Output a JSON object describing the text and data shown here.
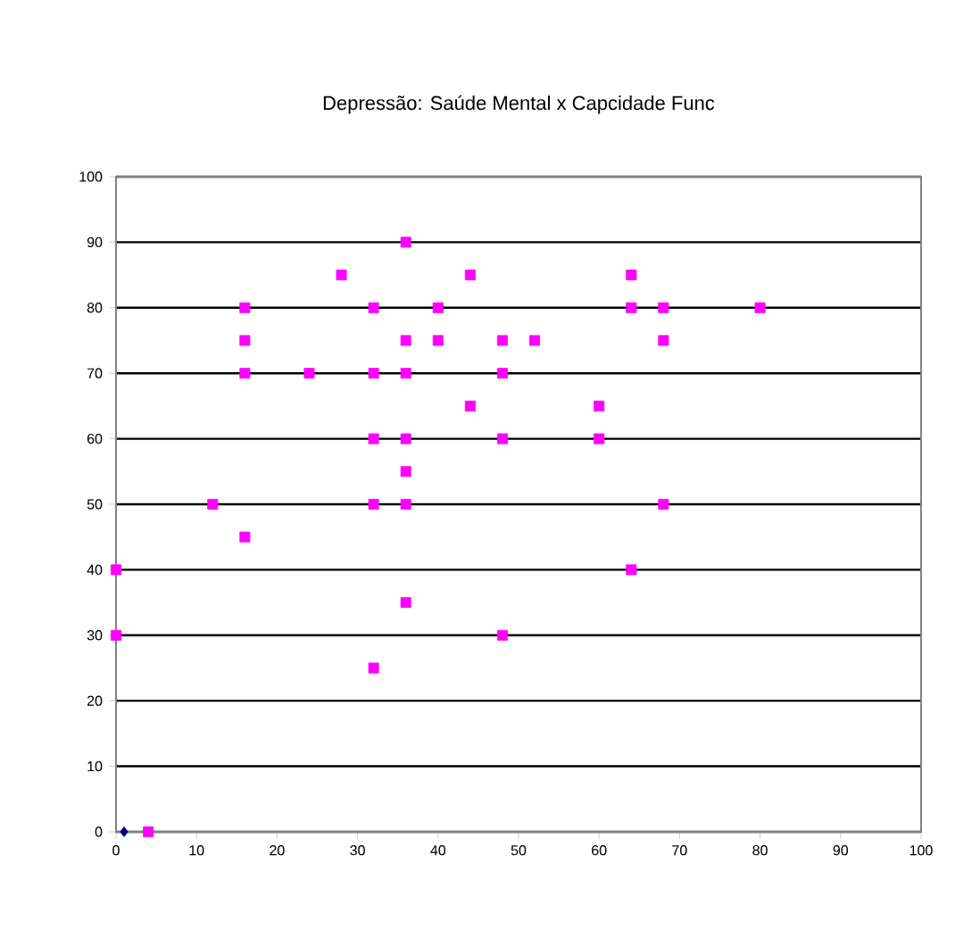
{
  "chart_data": {
    "type": "scatter",
    "title": "Depressão: Saúde Mental x Capcidade Func",
    "series": [
      {
        "color": "#ff00ff",
        "marker": "square",
        "x": [
          0,
          0,
          4,
          12,
          16,
          16,
          16,
          16,
          24,
          28,
          32,
          32,
          32,
          32,
          32,
          36,
          36,
          36,
          36,
          36,
          36,
          36,
          40,
          40,
          44,
          44,
          48,
          48,
          48,
          48,
          52,
          60,
          60,
          64,
          64,
          64,
          68,
          68,
          68,
          80
        ],
        "values": [
          40,
          30,
          0,
          50,
          80,
          75,
          70,
          45,
          70,
          85,
          80,
          70,
          60,
          50,
          25,
          90,
          75,
          70,
          60,
          55,
          50,
          35,
          80,
          75,
          85,
          65,
          75,
          70,
          60,
          30,
          75,
          65,
          60,
          85,
          80,
          40,
          80,
          75,
          50,
          80
        ]
      },
      {
        "color": "#000080",
        "marker": "diamond",
        "x": [
          1
        ],
        "values": [
          0
        ]
      }
    ],
    "xlim": [
      0,
      100
    ],
    "ylim": [
      0,
      100
    ],
    "xticks": [
      0,
      10,
      20,
      30,
      40,
      50,
      60,
      70,
      80,
      90,
      100
    ],
    "yticks": [
      0,
      10,
      20,
      30,
      40,
      50,
      60,
      70,
      80,
      90,
      100
    ],
    "grid": "y"
  }
}
